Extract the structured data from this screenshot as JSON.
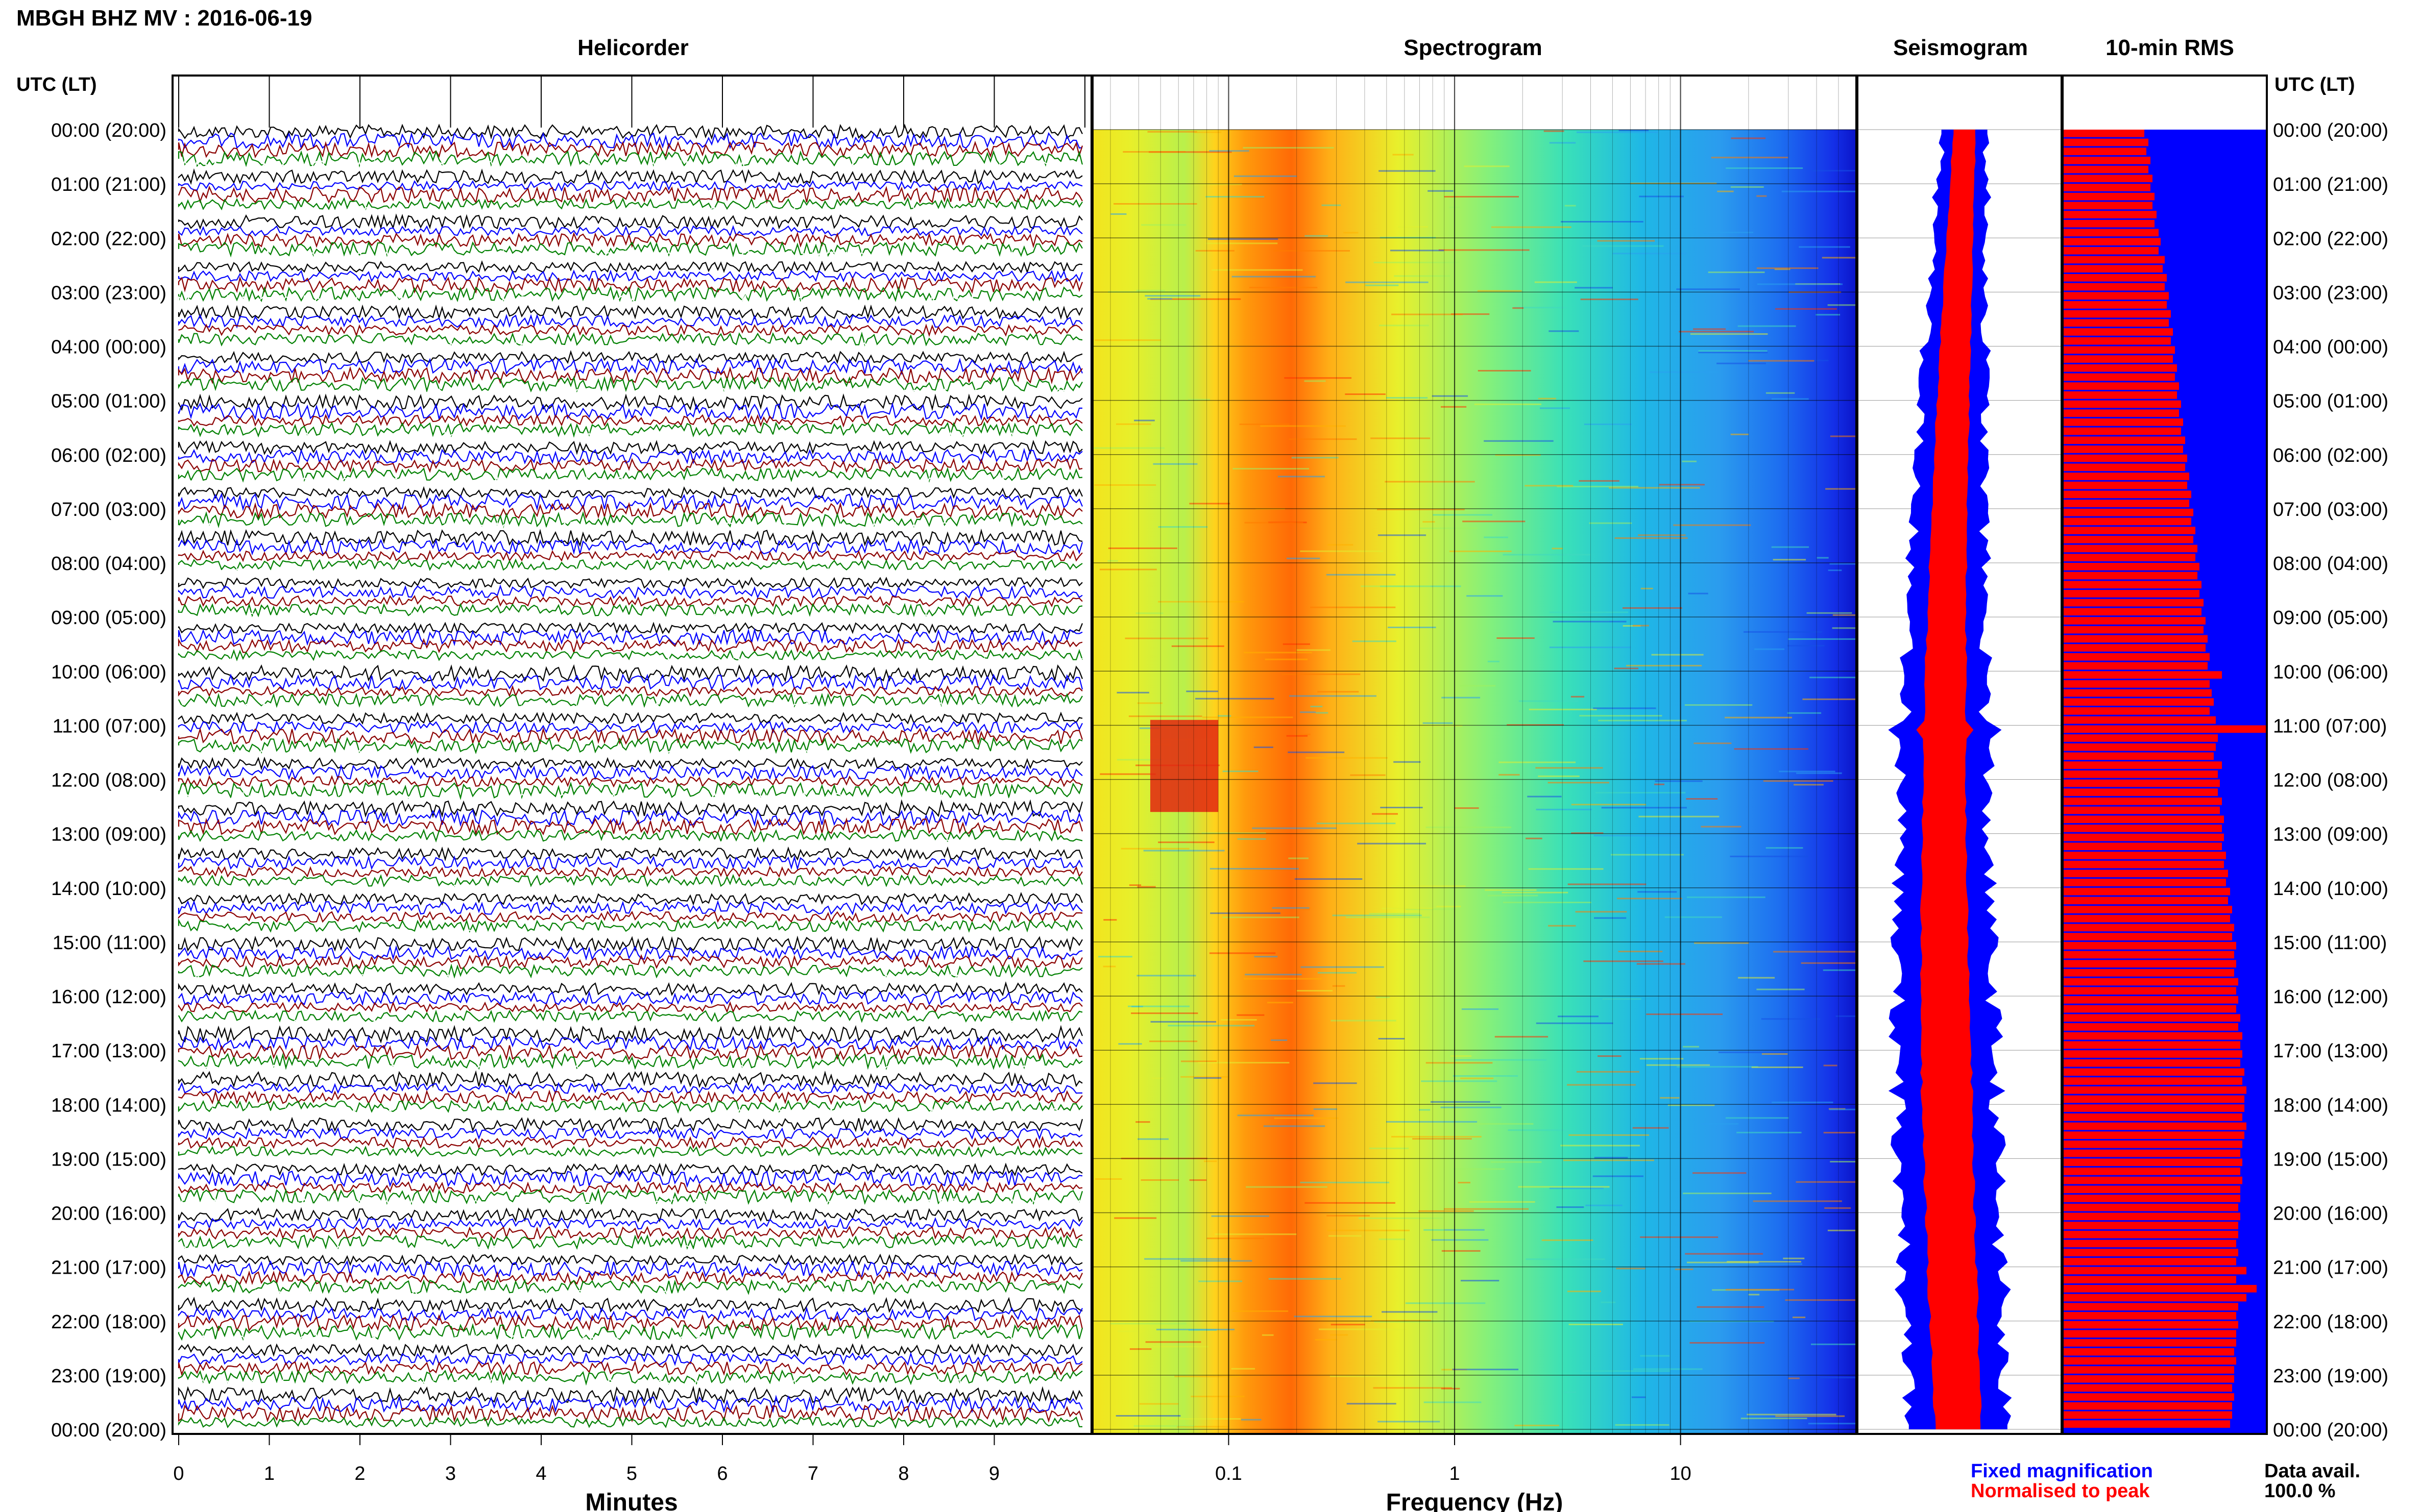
{
  "title": "MBGH BHZ MV : 2016-06-19",
  "panels": {
    "helicorder": "Helicorder",
    "spectrogram": "Spectrogram",
    "seismogram": "Seismogram",
    "rms": "10-min RMS"
  },
  "axis_labels": {
    "time_left": "UTC (LT)",
    "time_right": "UTC (LT)",
    "minutes": "Minutes",
    "frequency": "Frequency (Hz)"
  },
  "legend": {
    "fixed": "Fixed magnification",
    "normalised": "Normalised to peak",
    "data_avail_label": "Data avail.",
    "data_avail_value": "100.0 %"
  },
  "colors": {
    "fixed": "#0000ff",
    "normalised": "#ff0000",
    "trace_cycle": [
      "#000000",
      "#0000ff",
      "#8b0000",
      "#008000",
      "#ffffff"
    ]
  },
  "chart_data": {
    "type": "other",
    "time_labels": [
      "00:00 (20:00)",
      "01:00 (21:00)",
      "02:00 (22:00)",
      "03:00 (23:00)",
      "04:00 (00:00)",
      "05:00 (01:00)",
      "06:00 (02:00)",
      "07:00 (03:00)",
      "08:00 (04:00)",
      "09:00 (05:00)",
      "10:00 (06:00)",
      "11:00 (07:00)",
      "12:00 (08:00)",
      "13:00 (09:00)",
      "14:00 (10:00)",
      "15:00 (11:00)",
      "16:00 (12:00)",
      "17:00 (13:00)",
      "18:00 (14:00)",
      "19:00 (15:00)",
      "20:00 (16:00)",
      "21:00 (17:00)",
      "22:00 (18:00)",
      "23:00 (19:00)",
      "00:00 (20:00)"
    ],
    "minute_ticks": [
      "0",
      "1",
      "2",
      "3",
      "4",
      "5",
      "6",
      "7",
      "8",
      "9"
    ],
    "frequency_ticks": [
      "0.1",
      "1",
      "10"
    ],
    "frequency_log_range": [
      0.025,
      60
    ],
    "minutes_range": [
      0,
      10
    ],
    "rms_normalised": [
      0.4,
      0.42,
      0.41,
      0.43,
      0.42,
      0.44,
      0.43,
      0.45,
      0.44,
      0.46,
      0.45,
      0.47,
      0.48,
      0.47,
      0.5,
      0.49,
      0.51,
      0.5,
      0.52,
      0.51,
      0.53,
      0.52,
      0.54,
      0.53,
      0.55,
      0.54,
      0.56,
      0.55,
      0.57,
      0.56,
      0.58,
      0.57,
      0.59,
      0.58,
      0.6,
      0.59,
      0.61,
      0.6,
      0.62,
      0.61,
      0.63,
      0.62,
      0.64,
      0.63,
      0.65,
      0.64,
      0.66,
      0.65,
      0.67,
      0.66,
      0.68,
      0.67,
      0.69,
      0.68,
      0.7,
      0.69,
      0.71,
      0.7,
      0.72,
      0.71,
      0.78,
      0.72,
      0.73,
      0.74,
      0.72,
      0.75,
      1.0,
      0.76,
      0.75,
      0.74,
      0.78,
      0.76,
      0.77,
      0.76,
      0.78,
      0.77,
      0.79,
      0.78,
      0.79,
      0.78,
      0.8,
      0.79,
      0.81,
      0.8,
      0.82,
      0.81,
      0.83,
      0.82,
      0.84,
      0.83,
      0.85,
      0.84,
      0.85,
      0.84,
      0.86,
      0.85,
      0.86,
      0.85,
      0.87,
      0.86,
      0.88,
      0.87,
      0.88,
      0.87,
      0.89,
      0.88,
      0.9,
      0.89,
      0.89,
      0.88,
      0.9,
      0.89,
      0.88,
      0.87,
      0.88,
      0.87,
      0.88,
      0.87,
      0.87,
      0.86,
      0.87,
      0.86,
      0.86,
      0.85,
      0.86,
      0.85,
      0.9,
      0.85,
      0.95,
      0.9,
      0.86,
      0.85,
      0.86,
      0.85,
      0.85,
      0.84,
      0.85,
      0.84,
      0.84,
      0.83,
      0.84,
      0.83,
      0.83,
      0.82
    ]
  }
}
